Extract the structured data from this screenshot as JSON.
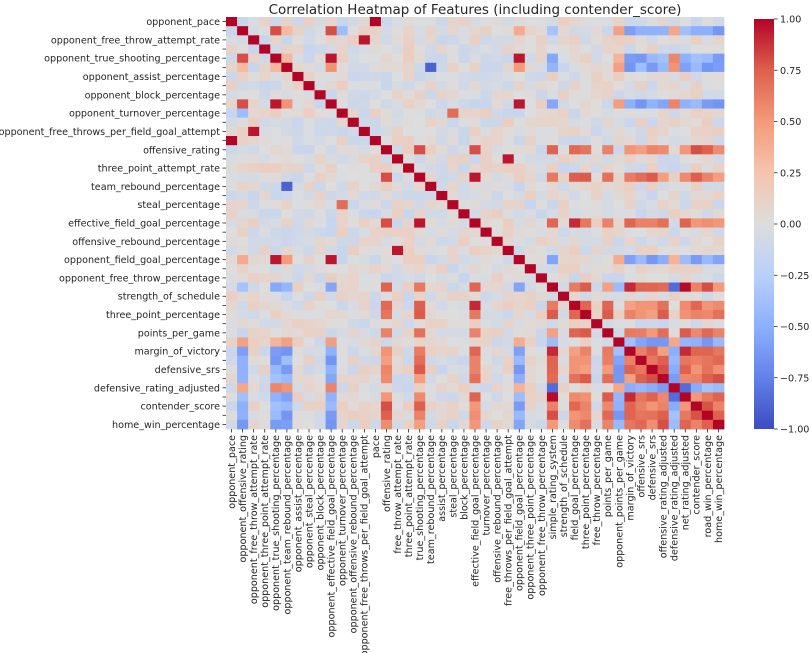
{
  "chart_data": {
    "type": "heatmap",
    "title": "Correlation Heatmap of Features (including contender_score)",
    "xlabel": "",
    "ylabel": "",
    "colormap": "coolwarm",
    "vmin": -1.0,
    "vmax": 1.0,
    "colorbar": {
      "ticks": [
        1.0,
        0.75,
        0.5,
        0.25,
        0.0,
        -0.25,
        -0.5,
        -0.75,
        -1.0
      ],
      "tick_labels": [
        "1.00",
        "0.75",
        "0.50",
        "0.25",
        "0.00",
        "−0.25",
        "−0.50",
        "−0.75",
        "−1.00"
      ],
      "placement": "right"
    },
    "features": [
      "opponent_pace",
      "opponent_offensive_rating",
      "opponent_free_throw_attempt_rate",
      "opponent_three_point_attempt_rate",
      "opponent_true_shooting_percentage",
      "opponent_team_rebound_percentage",
      "opponent_assist_percentage",
      "opponent_steal_percentage",
      "opponent_block_percentage",
      "opponent_effective_field_goal_percentage",
      "opponent_turnover_percentage",
      "opponent_offensive_rebound_percentage",
      "opponent_free_throws_per_field_goal_attempt",
      "pace",
      "offensive_rating",
      "free_throw_attempt_rate",
      "three_point_attempt_rate",
      "true_shooting_percentage",
      "team_rebound_percentage",
      "assist_percentage",
      "steal_percentage",
      "block_percentage",
      "effective_field_goal_percentage",
      "turnover_percentage",
      "offensive_rebound_percentage",
      "free_throws_per_field_goal_attempt",
      "opponent_field_goal_percentage",
      "opponent_three_point_percentage",
      "opponent_free_throw_percentage",
      "simple_rating_system",
      "strength_of_schedule",
      "field_goal_percentage",
      "three_point_percentage",
      "free_throw_percentage",
      "points_per_game",
      "opponent_points_per_game",
      "margin_of_victory",
      "offensive_srs",
      "defensive_srs",
      "offensive_rating_adjusted",
      "defensive_rating_adjusted",
      "net_rating_adjusted",
      "contender_score",
      "road_win_percentage",
      "home_win_percentage"
    ],
    "y_tick_labels_shown": [
      "opponent_pace",
      "opponent_free_throw_attempt_rate",
      "opponent_true_shooting_percentage",
      "opponent_assist_percentage",
      "opponent_block_percentage",
      "opponent_turnover_percentage",
      "opponent_free_throws_per_field_goal_attempt",
      "offensive_rating",
      "three_point_attempt_rate",
      "team_rebound_percentage",
      "steal_percentage",
      "effective_field_goal_percentage",
      "offensive_rebound_percentage",
      "opponent_field_goal_percentage",
      "opponent_free_throw_percentage",
      "strength_of_schedule",
      "three_point_percentage",
      "points_per_game",
      "margin_of_victory",
      "defensive_srs",
      "defensive_rating_adjusted",
      "contender_score",
      "home_win_percentage"
    ],
    "notable_correlations": [
      {
        "a": "opponent_pace",
        "b": "pace",
        "value": 1.0
      },
      {
        "a": "opponent_offensive_rating",
        "b": "opponent_true_shooting_percentage",
        "value": 0.8
      },
      {
        "a": "opponent_offensive_rating",
        "b": "opponent_effective_field_goal_percentage",
        "value": 0.8
      },
      {
        "a": "opponent_offensive_rating",
        "b": "opponent_turnover_percentage",
        "value": -0.4
      },
      {
        "a": "opponent_free_throw_attempt_rate",
        "b": "opponent_free_throws_per_field_goal_attempt",
        "value": 0.95
      },
      {
        "a": "opponent_true_shooting_percentage",
        "b": "opponent_effective_field_goal_percentage",
        "value": 0.95
      },
      {
        "a": "opponent_true_shooting_percentage",
        "b": "opponent_field_goal_percentage",
        "value": 0.95
      },
      {
        "a": "opponent_team_rebound_percentage",
        "b": "team_rebound_percentage",
        "value": -0.9
      },
      {
        "a": "opponent_effective_field_goal_percentage",
        "b": "opponent_field_goal_percentage",
        "value": 0.95
      },
      {
        "a": "opponent_turnover_percentage",
        "b": "steal_percentage",
        "value": 0.7
      },
      {
        "a": "offensive_rating",
        "b": "true_shooting_percentage",
        "value": 0.8
      },
      {
        "a": "offensive_rating",
        "b": "effective_field_goal_percentage",
        "value": 0.8
      },
      {
        "a": "free_throw_attempt_rate",
        "b": "free_throws_per_field_goal_attempt",
        "value": 0.95
      },
      {
        "a": "true_shooting_percentage",
        "b": "effective_field_goal_percentage",
        "value": 0.95
      },
      {
        "a": "effective_field_goal_percentage",
        "b": "field_goal_percentage",
        "value": 0.9
      },
      {
        "a": "simple_rating_system",
        "b": "margin_of_victory",
        "value": 0.9
      },
      {
        "a": "simple_rating_system",
        "b": "net_rating_adjusted",
        "value": 0.98
      },
      {
        "a": "simple_rating_system",
        "b": "defensive_rating_adjusted",
        "value": -0.85
      },
      {
        "a": "margin_of_victory",
        "b": "net_rating_adjusted",
        "value": 0.9
      },
      {
        "a": "defensive_rating_adjusted",
        "b": "net_rating_adjusted",
        "value": -0.85
      },
      {
        "a": "road_win_percentage",
        "b": "home_win_percentage",
        "value": 0.75
      },
      {
        "a": "contender_score",
        "b": "home_win_percentage",
        "value": 0.6
      }
    ]
  }
}
